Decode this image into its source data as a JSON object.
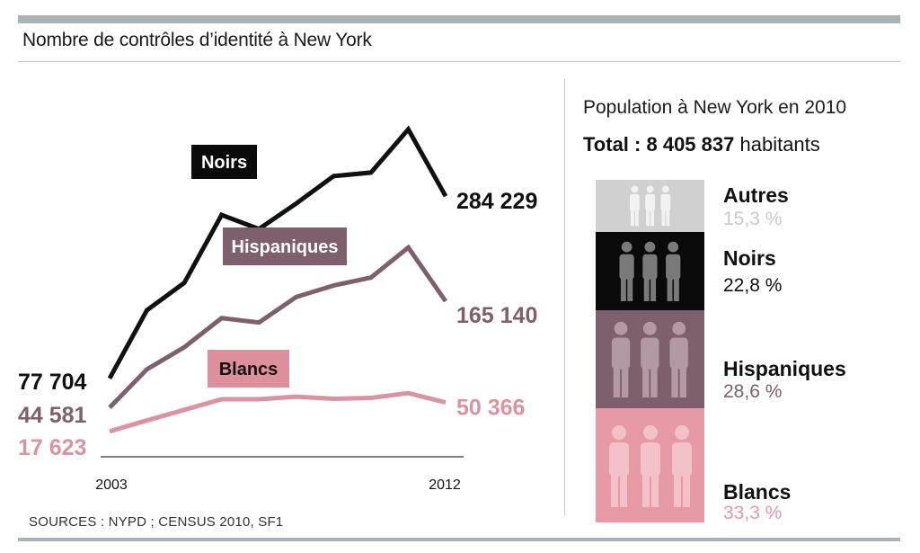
{
  "title": "Nombre de contrôles d’identité à New York",
  "source": "SOURCES : NYPD ; CENSUS 2010, SF1",
  "chart_data": [
    {
      "type": "line",
      "title": "Nombre de contrôles d’identité à New York",
      "x": [
        2003,
        2004,
        2005,
        2006,
        2007,
        2008,
        2009,
        2010,
        2011,
        2012
      ],
      "xtick_labels": [
        "2003",
        "2012"
      ],
      "ylim": [
        0,
        420000
      ],
      "series": [
        {
          "name": "Noirs",
          "color": "#111111",
          "values": [
            77704,
            155000,
            186000,
            263000,
            247000,
            276000,
            307000,
            311000,
            360000,
            284229
          ],
          "start_label": "77 704",
          "end_label": "284 229"
        },
        {
          "name": "Hispaniques",
          "color": "#7d5f6d",
          "values": [
            44581,
            88000,
            113000,
            146000,
            141000,
            170000,
            183000,
            192000,
            226000,
            165140
          ],
          "start_label": "44 581",
          "end_label": "165 140"
        },
        {
          "name": "Blancs",
          "color": "#d994a0",
          "values": [
            17623,
            30000,
            42000,
            54000,
            54000,
            57000,
            54500,
            55500,
            61000,
            50366
          ],
          "start_label": "17 623",
          "end_label": "50 366"
        }
      ]
    },
    {
      "type": "bar",
      "subtype": "stacked-100",
      "title": "Population à New York en 2010",
      "total_label": "Total :",
      "total_value": "8 405 837",
      "total_unit": "habitants",
      "categories": [
        "Autres",
        "Noirs",
        "Hispaniques",
        "Blancs"
      ],
      "values": [
        15.3,
        22.8,
        28.6,
        33.3
      ],
      "value_labels": [
        "15,3 %",
        "22,8 %",
        "28,6 %",
        "33,3 %"
      ],
      "colors": [
        "#d0d0d0",
        "#0a0a0a",
        "#7d5f6d",
        "#e69aa6"
      ],
      "icon_colors": [
        "#f2f2f2",
        "#7a7a7a",
        "#b399a4",
        "#f3c2c8"
      ],
      "label_colors": [
        "#111111",
        "#111111",
        "#111111",
        "#111111"
      ],
      "pct_colors": [
        "#c9c9c9",
        "#111111",
        "#7d5f6d",
        "#e19aa5"
      ]
    }
  ]
}
